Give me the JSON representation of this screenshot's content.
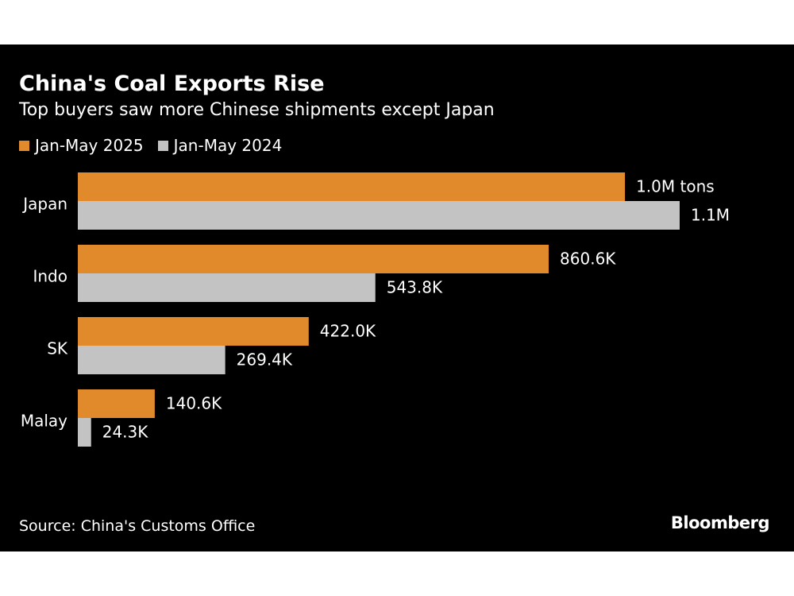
{
  "header": {
    "title": "China's Coal Exports Rise",
    "subtitle": "Top buyers saw more Chinese shipments except Japan"
  },
  "legend": [
    {
      "label": "Jan-May 2025",
      "color": "#e08a2c"
    },
    {
      "label": "Jan-May 2024",
      "color": "#c3c3c3"
    }
  ],
  "footer": {
    "source": "Source: China's Customs Office",
    "brand": "Bloomberg"
  },
  "chart_data": {
    "type": "bar",
    "orientation": "horizontal",
    "categories": [
      "Japan",
      "Indo",
      "SK",
      "Malay"
    ],
    "series": [
      {
        "name": "Jan-May 2025",
        "color": "#e08a2c",
        "values": [
          1000000,
          860600,
          422000,
          140600
        ],
        "labels": [
          "1.0M tons",
          "860.6K",
          "422.0K",
          "140.6K"
        ]
      },
      {
        "name": "Jan-May 2024",
        "color": "#c3c3c3",
        "values": [
          1100000,
          543800,
          269400,
          24300
        ],
        "labels": [
          "1.1M",
          "543.8K",
          "269.4K",
          "24.3K"
        ]
      }
    ],
    "xlim": [
      0,
      1100000
    ],
    "grid": false,
    "legend_position": "top-left"
  }
}
